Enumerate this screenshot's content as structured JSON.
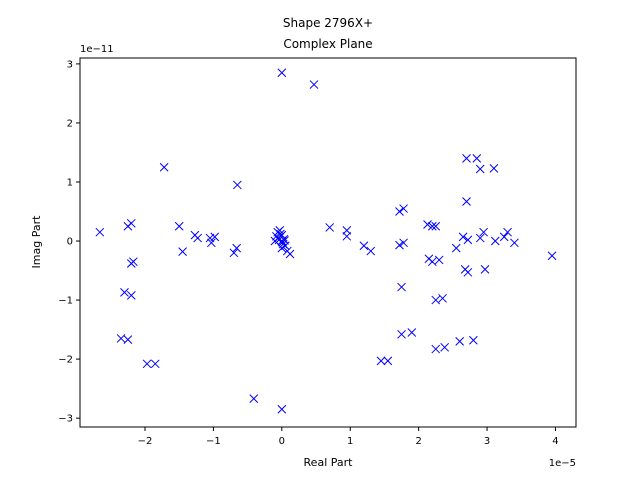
{
  "chart_data": {
    "type": "scatter",
    "title": "Shape 2796X+",
    "subtitle": "Complex Plane",
    "xlabel": "Real Part",
    "ylabel": "Imag Part",
    "x_offset_text": "1e−5",
    "y_offset_text": "1e−11",
    "xlim": [
      -2.95,
      4.3
    ],
    "ylim": [
      -3.15,
      3.1
    ],
    "xticks": [
      -2,
      -1,
      0,
      1,
      2,
      3,
      4
    ],
    "yticks": [
      -3,
      -2,
      -1,
      0,
      1,
      2,
      3
    ],
    "xtick_labels": [
      "−2",
      "−1",
      "0",
      "1",
      "2",
      "3",
      "4"
    ],
    "ytick_labels": [
      "−3",
      "−2",
      "−1",
      "0",
      "1",
      "2",
      "3"
    ],
    "marker": "x",
    "color": "#0000ff",
    "grid": false,
    "legend": "none",
    "points": [
      [
        0.0,
        2.85
      ],
      [
        0.47,
        2.65
      ],
      [
        0.0,
        -2.85
      ],
      [
        -0.41,
        -2.67
      ],
      [
        -2.66,
        0.15
      ],
      [
        -2.25,
        0.25
      ],
      [
        -2.2,
        0.3
      ],
      [
        -2.2,
        -0.38
      ],
      [
        -2.17,
        -0.35
      ],
      [
        -2.3,
        -0.87
      ],
      [
        -2.2,
        -0.92
      ],
      [
        -2.35,
        -1.65
      ],
      [
        -2.25,
        -1.67
      ],
      [
        -1.97,
        -2.08
      ],
      [
        -1.85,
        -2.08
      ],
      [
        -1.72,
        1.25
      ],
      [
        -1.5,
        0.25
      ],
      [
        -1.45,
        -0.18
      ],
      [
        -1.27,
        0.1
      ],
      [
        -1.23,
        0.05
      ],
      [
        -1.05,
        0.05
      ],
      [
        -1.03,
        -0.03
      ],
      [
        -0.98,
        0.07
      ],
      [
        -0.7,
        -0.2
      ],
      [
        -0.66,
        -0.12
      ],
      [
        -0.65,
        0.95
      ],
      [
        -0.1,
        0.0
      ],
      [
        -0.08,
        0.08
      ],
      [
        -0.05,
        0.05
      ],
      [
        -0.03,
        0.18
      ],
      [
        -0.02,
        0.12
      ],
      [
        0.0,
        0.1
      ],
      [
        0.0,
        0.0
      ],
      [
        0.02,
        -0.05
      ],
      [
        0.0,
        -0.12
      ],
      [
        0.05,
        -0.08
      ],
      [
        -0.04,
        0.02
      ],
      [
        0.03,
        0.03
      ],
      [
        0.08,
        -0.17
      ],
      [
        0.12,
        -0.22
      ],
      [
        -0.06,
        0.15
      ],
      [
        0.01,
        -0.02
      ],
      [
        0.04,
        0.01
      ],
      [
        0.7,
        0.23
      ],
      [
        0.95,
        0.18
      ],
      [
        0.95,
        0.08
      ],
      [
        1.2,
        -0.08
      ],
      [
        1.3,
        -0.17
      ],
      [
        1.45,
        -2.03
      ],
      [
        1.55,
        -2.03
      ],
      [
        1.72,
        0.5
      ],
      [
        1.78,
        0.55
      ],
      [
        1.72,
        -0.07
      ],
      [
        1.78,
        -0.03
      ],
      [
        1.75,
        -0.78
      ],
      [
        1.75,
        -1.58
      ],
      [
        1.9,
        -1.55
      ],
      [
        2.13,
        0.28
      ],
      [
        2.2,
        0.25
      ],
      [
        2.25,
        0.25
      ],
      [
        2.15,
        -0.3
      ],
      [
        2.2,
        -0.35
      ],
      [
        2.3,
        -0.32
      ],
      [
        2.25,
        -1.0
      ],
      [
        2.35,
        -0.97
      ],
      [
        2.25,
        -1.83
      ],
      [
        2.38,
        -1.8
      ],
      [
        2.55,
        -0.12
      ],
      [
        2.6,
        -1.7
      ],
      [
        2.65,
        0.07
      ],
      [
        2.68,
        -0.48
      ],
      [
        2.72,
        -0.53
      ],
      [
        2.72,
        0.02
      ],
      [
        2.7,
        0.67
      ],
      [
        2.7,
        1.4
      ],
      [
        2.85,
        1.4
      ],
      [
        2.9,
        1.22
      ],
      [
        2.8,
        -1.68
      ],
      [
        2.9,
        0.05
      ],
      [
        2.95,
        0.15
      ],
      [
        2.97,
        -0.48
      ],
      [
        3.1,
        1.23
      ],
      [
        3.12,
        0.0
      ],
      [
        3.25,
        0.07
      ],
      [
        3.3,
        0.15
      ],
      [
        3.4,
        -0.03
      ],
      [
        3.95,
        -0.25
      ]
    ]
  }
}
